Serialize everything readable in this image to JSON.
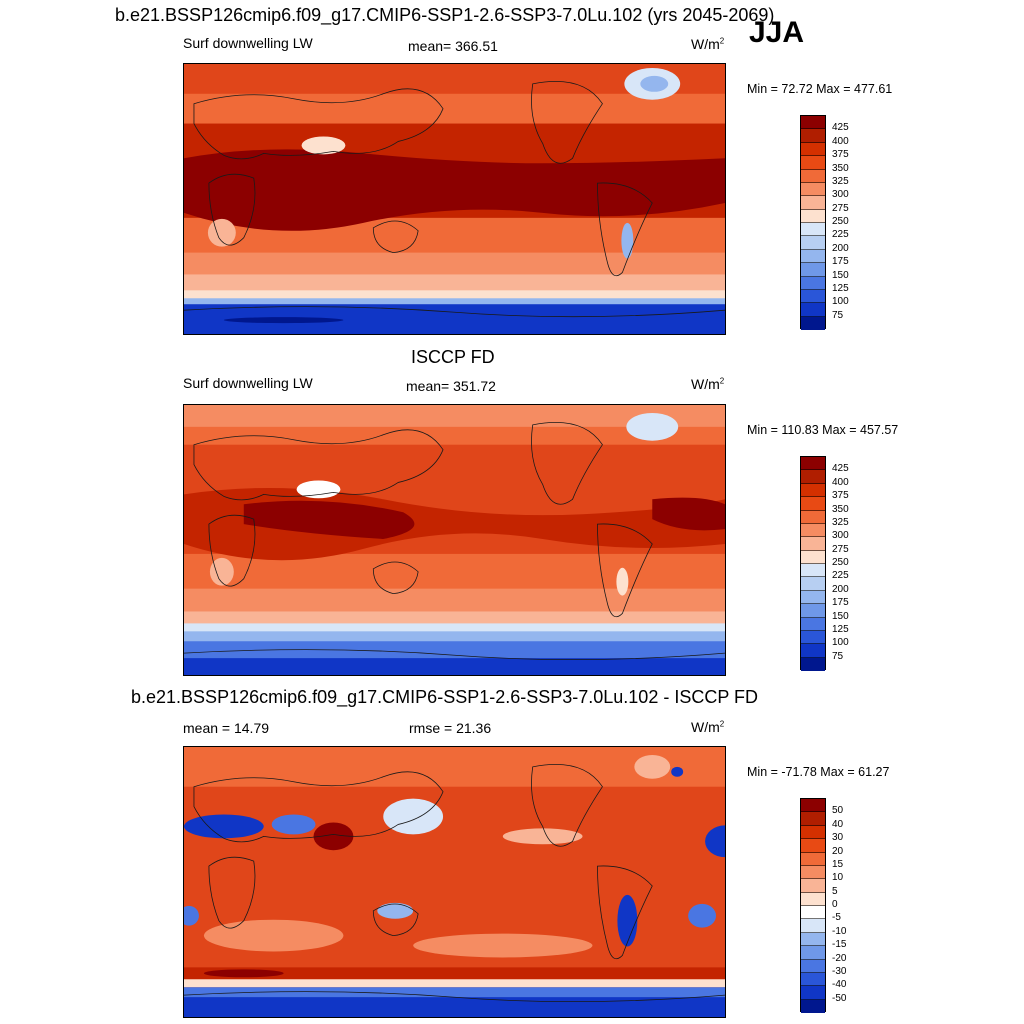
{
  "season": "JJA",
  "panels": [
    {
      "title": "b.e21.BSSP126cmip6.f09_g17.CMIP6-SSP1-2.6-SSP3-7.0Lu.102 (yrs 2045-2069)",
      "left_label": "Surf downwelling LW",
      "center_label": "mean= 366.51",
      "units": "W/m",
      "units_exp": "2",
      "minmax": "Min =  72.72 Max = 477.61",
      "colorbar_ticks": [
        "425",
        "400",
        "375",
        "350",
        "325",
        "300",
        "275",
        "250",
        "225",
        "200",
        "175",
        "150",
        "125",
        "100",
        "75"
      ],
      "colorbar_colors": [
        "#8c0000",
        "#b01e00",
        "#d43000",
        "#e84a14",
        "#f06a38",
        "#f58c62",
        "#f9b496",
        "#fde1cf",
        "#d8e6f8",
        "#b7cff2",
        "#94b6ee",
        "#6f98e8",
        "#4a76e2",
        "#2a56d8",
        "#1036c6",
        "#00178e"
      ]
    },
    {
      "title": "ISCCP FD",
      "left_label": "Surf downwelling LW",
      "center_label": "mean= 351.72",
      "units": "W/m",
      "units_exp": "2",
      "minmax": "Min = 110.83 Max = 457.57",
      "colorbar_ticks": [
        "425",
        "400",
        "375",
        "350",
        "325",
        "300",
        "275",
        "250",
        "225",
        "200",
        "175",
        "150",
        "125",
        "100",
        "75"
      ],
      "colorbar_colors": [
        "#8c0000",
        "#b01e00",
        "#d43000",
        "#e84a14",
        "#f06a38",
        "#f58c62",
        "#f9b496",
        "#fde1cf",
        "#d8e6f8",
        "#b7cff2",
        "#94b6ee",
        "#6f98e8",
        "#4a76e2",
        "#2a56d8",
        "#1036c6",
        "#00178e"
      ]
    },
    {
      "title": "b.e21.BSSP126cmip6.f09_g17.CMIP6-SSP1-2.6-SSP3-7.0Lu.102 - ISCCP FD",
      "left_label": "mean =  14.79",
      "center_label": "rmse =  21.36",
      "units": "W/m",
      "units_exp": "2",
      "minmax": "Min = -71.78 Max =  61.27",
      "colorbar_ticks": [
        "50",
        "40",
        "30",
        "20",
        "15",
        "10",
        "5",
        "0",
        "-5",
        "-10",
        "-15",
        "-20",
        "-30",
        "-40",
        "-50"
      ],
      "colorbar_colors": [
        "#8c0000",
        "#b01e00",
        "#d43000",
        "#e84a14",
        "#f06a38",
        "#f58c62",
        "#f9b496",
        "#fde1cf",
        "#ffffff",
        "#d8e6f8",
        "#94b6ee",
        "#6f98e8",
        "#4a76e2",
        "#2a56d8",
        "#1036c6",
        "#00178e"
      ]
    }
  ],
  "map_palette": {
    "dark_red": "#8c0000",
    "red": "#c42400",
    "orange_red": "#e0461a",
    "orange": "#f06a38",
    "salmon": "#f58c62",
    "peach": "#f9b496",
    "pale": "#fde1cf",
    "white": "#ffffff",
    "pale_blue": "#d8e6f8",
    "light_blue": "#94b6ee",
    "blue": "#4a76e2",
    "deep_blue": "#1036c6",
    "navy": "#00178e",
    "coast": "#1a1a1a"
  }
}
